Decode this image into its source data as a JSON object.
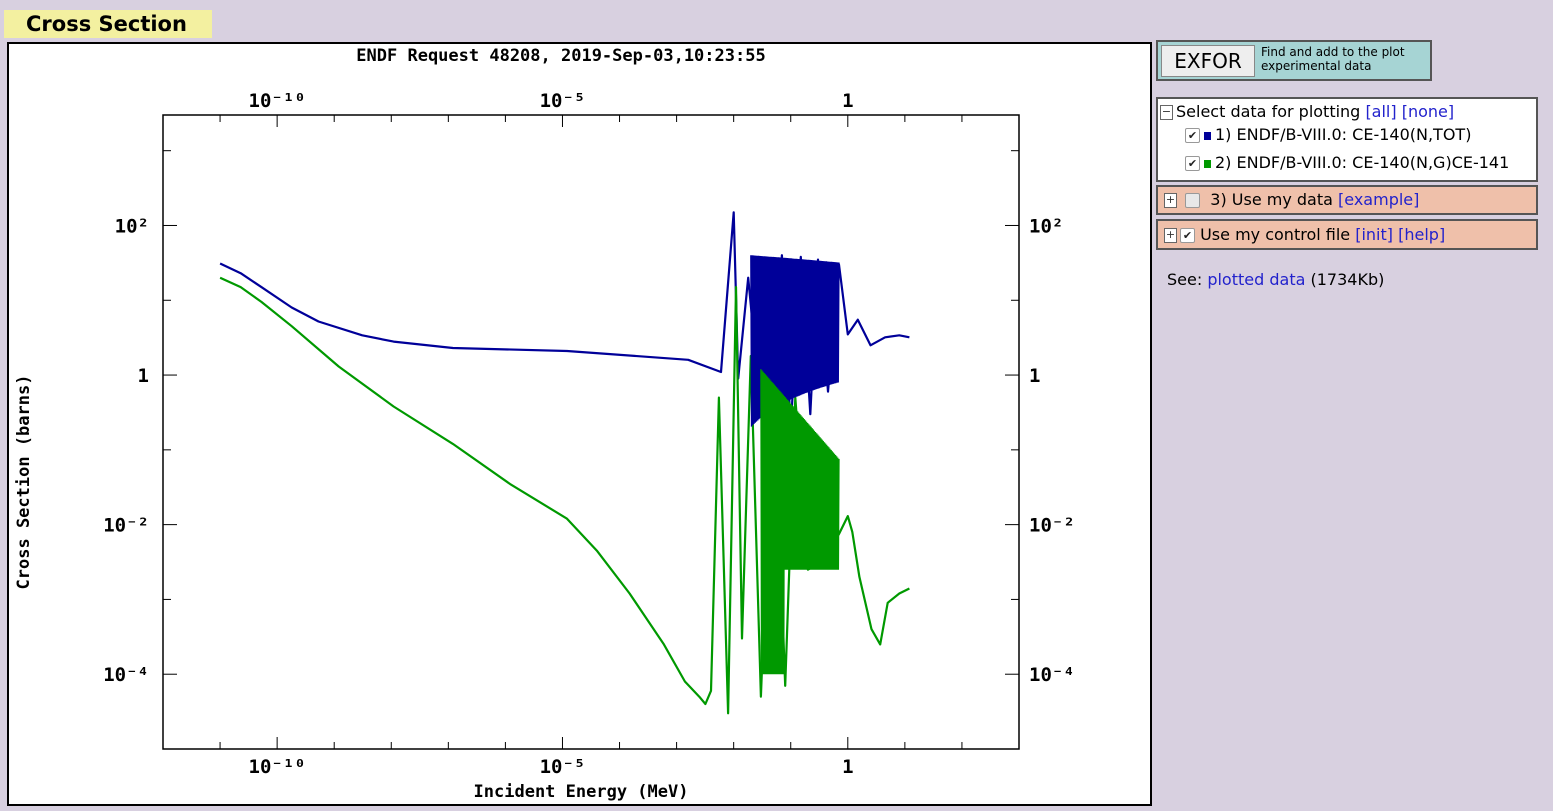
{
  "page": {
    "section_title": "Cross Section",
    "exfor_button": "EXFOR",
    "exfor_text_line1": "Find and add to the plot",
    "exfor_text_line2": "experimental data",
    "select_label": "Select data for plotting",
    "all_link": "[all]",
    "none_link": "[none]",
    "datasets": [
      {
        "label": "1) ENDF/B-VIII.0: CE-140(N,TOT)",
        "color": "#000099",
        "checked": true
      },
      {
        "label": "2) ENDF/B-VIII.0: CE-140(N,G)CE-141",
        "color": "#009900",
        "checked": true
      }
    ],
    "use_my_data_label": "3) Use my data",
    "example_link": "[example]",
    "use_control_label": "Use my control file",
    "init_link": "[init]",
    "help_link": "[help]",
    "see_label": "See:",
    "plotted_data_link": "plotted data",
    "plotted_data_size": "(1734Kb)"
  },
  "chart_data": {
    "type": "line",
    "title": "ENDF Request 48208, 2019-Sep-03,10:23:55",
    "xlabel": "Incident Energy (MeV)",
    "ylabel": "Cross Section (barns)",
    "x_scale": "log",
    "y_scale": "log",
    "xlim": [
      1e-12,
      1000.0
    ],
    "ylim": [
      1e-05,
      3000.0
    ],
    "x_ticks": [
      {
        "value": 1e-10,
        "label": "10⁻¹⁰"
      },
      {
        "value": 1e-05,
        "label": "10⁻⁵"
      },
      {
        "value": 1,
        "label": "1"
      }
    ],
    "y_ticks": [
      {
        "value": 100,
        "label": "10²"
      },
      {
        "value": 1,
        "label": "1"
      },
      {
        "value": 0.01,
        "label": "10⁻²"
      },
      {
        "value": 0.0001,
        "label": "10⁻⁴"
      }
    ],
    "series": [
      {
        "name": "1) ENDF/B-VIII.0: CE-140(N,TOT)",
        "color": "#000099",
        "x": [
          1e-11,
          2.3e-11,
          5.3e-11,
          1.8e-10,
          5.3e-10,
          3.1e-09,
          1.1e-08,
          1.2e-07,
          1.2e-05,
          0.0016,
          0.006,
          0.01,
          0.012,
          0.018,
          0.025,
          0.035,
          0.05,
          0.07,
          0.1,
          0.15,
          0.22,
          0.3,
          0.45,
          0.7,
          1.0,
          1.5,
          2.5,
          4.5,
          8,
          12
        ],
        "y": [
          31,
          23,
          15,
          8.0,
          5.2,
          3.4,
          2.8,
          2.3,
          2.1,
          1.6,
          1.1,
          150,
          0.9,
          20,
          1.4,
          30,
          0.15,
          40,
          0.2,
          38,
          0.3,
          35,
          0.6,
          30,
          3.5,
          5.5,
          2.5,
          3.2,
          3.4,
          3.2
        ]
      },
      {
        "name": "2) ENDF/B-VIII.0: CE-140(N,G)CE-141",
        "color": "#009900",
        "x": [
          1e-11,
          2.3e-11,
          5.3e-11,
          1.8e-10,
          1.2e-09,
          1.1e-08,
          1.2e-07,
          1.2e-06,
          1.2e-05,
          4e-05,
          0.00015,
          0.0006,
          0.0014,
          0.0025,
          0.0032,
          0.004,
          0.0055,
          0.008,
          0.011,
          0.014,
          0.02,
          0.03,
          0.05,
          0.08,
          0.12,
          0.2,
          0.3,
          0.45,
          0.7,
          1.0,
          1.2,
          1.6,
          2.6,
          3.7,
          5.0,
          8,
          12
        ],
        "y": [
          20,
          15,
          9.5,
          4.5,
          1.3,
          0.38,
          0.12,
          0.035,
          0.012,
          0.0045,
          0.0012,
          0.00025,
          8e-05,
          5e-05,
          4e-05,
          6e-05,
          0.5,
          3e-05,
          15,
          0.0003,
          1.8,
          5e-05,
          1.2,
          7e-05,
          0.5,
          0.0025,
          0.003,
          0.0045,
          0.0075,
          0.013,
          0.008,
          0.002,
          0.0004,
          0.00025,
          0.0009,
          0.0012,
          0.0014
        ]
      }
    ],
    "legend": "none",
    "grid": false
  }
}
